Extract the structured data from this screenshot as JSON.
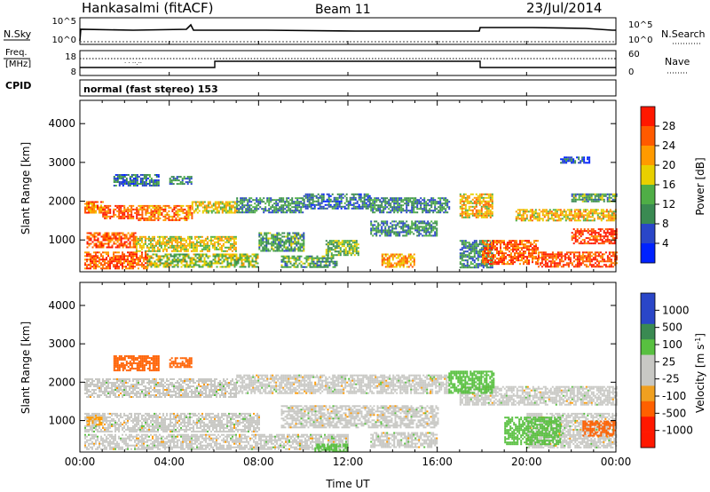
{
  "header": {
    "station": "Hankasalmi (fitACF)",
    "beam": "Beam 11",
    "date": "23/Jul/2014"
  },
  "side_labels": {
    "nsky": "N.Sky",
    "nsearch": "N.Search",
    "freq_line1": "Freq.",
    "freq_line2": "[MHz]",
    "nave": "Nave",
    "cpid": "CPID"
  },
  "strip_ticks": {
    "nsky_top": "10^5",
    "nsky_bottom": "10^0",
    "nsearch_top": "10^5",
    "nsearch_bottom": "10^0",
    "freq_top": "18",
    "freq_bottom": "8",
    "nave_top": "60",
    "nave_bottom": "0"
  },
  "cpid_text": "normal (fast stereo) 153",
  "colors": {
    "power_scale": [
      "#0022ff",
      "#2a46c8",
      "#3a8a52",
      "#4fae46",
      "#e8d000",
      "#ff9a00",
      "#ff5a00",
      "#ff1800"
    ],
    "velocity_scale": [
      "#ff1800",
      "#ff6000",
      "#ff9a00",
      "#f0a020",
      "#c8c8c4",
      "#c8c8c4",
      "#58c040",
      "#3a8a52",
      "#2a46c8",
      "#2a46c8"
    ]
  },
  "chart_data": [
    {
      "type": "heatmap",
      "name": "power",
      "ylabel": "Slant Range [km]",
      "xlabel": "",
      "y_ticks": [
        "4000",
        "3000",
        "2000",
        "1000"
      ],
      "y_tick_values": [
        4000,
        3000,
        2000,
        1000
      ],
      "x_ticks": [
        "00:00",
        "04:00",
        "08:00",
        "12:00",
        "16:00",
        "20:00",
        "00:00"
      ],
      "x_tick_values": [
        0,
        4,
        8,
        12,
        16,
        20,
        24
      ],
      "xlim": [
        0,
        24
      ],
      "ylim": [
        180,
        4600
      ],
      "colorbar": {
        "label": "Power [dB]",
        "ticks": [
          "28",
          "24",
          "20",
          "16",
          "12",
          "8",
          "4"
        ],
        "tick_values": [
          28,
          24,
          20,
          16,
          12,
          8,
          4
        ],
        "range": [
          0,
          32
        ]
      },
      "echo_bands": [
        {
          "t": [
            0.2,
            1.0
          ],
          "r": [
            1700,
            2000
          ],
          "value": 24
        },
        {
          "t": [
            1.0,
            2.6
          ],
          "r": [
            1550,
            1900
          ],
          "value": 26
        },
        {
          "t": [
            2.6,
            5.0
          ],
          "r": [
            1500,
            1900
          ],
          "value": 24
        },
        {
          "t": [
            5.0,
            7.0
          ],
          "r": [
            1700,
            2000
          ],
          "value": 18
        },
        {
          "t": [
            7.0,
            10.0
          ],
          "r": [
            1700,
            2100
          ],
          "value": 10
        },
        {
          "t": [
            10.0,
            13.0
          ],
          "r": [
            1800,
            2200
          ],
          "value": 8
        },
        {
          "t": [
            13.0,
            16.5
          ],
          "r": [
            1700,
            2100
          ],
          "value": 10
        },
        {
          "t": [
            17.0,
            18.5
          ],
          "r": [
            1600,
            2200
          ],
          "value": 20
        },
        {
          "t": [
            19.5,
            24.0
          ],
          "r": [
            1500,
            1800
          ],
          "value": 20
        },
        {
          "t": [
            22.0,
            24.0
          ],
          "r": [
            2000,
            2200
          ],
          "value": 12
        },
        {
          "t": [
            0.3,
            2.5
          ],
          "r": [
            800,
            1200
          ],
          "value": 26
        },
        {
          "t": [
            2.5,
            7.0
          ],
          "r": [
            700,
            1100
          ],
          "value": 18
        },
        {
          "t": [
            8.0,
            10.0
          ],
          "r": [
            700,
            1200
          ],
          "value": 12
        },
        {
          "t": [
            11.0,
            12.5
          ],
          "r": [
            600,
            1000
          ],
          "value": 14
        },
        {
          "t": [
            13.0,
            16.0
          ],
          "r": [
            1100,
            1500
          ],
          "value": 10
        },
        {
          "t": [
            0.2,
            3.0
          ],
          "r": [
            250,
            700
          ],
          "value": 26
        },
        {
          "t": [
            3.0,
            8.0
          ],
          "r": [
            300,
            650
          ],
          "value": 16
        },
        {
          "t": [
            9.0,
            11.5
          ],
          "r": [
            300,
            600
          ],
          "value": 12
        },
        {
          "t": [
            13.5,
            15.0
          ],
          "r": [
            300,
            650
          ],
          "value": 22
        },
        {
          "t": [
            17.0,
            18.5
          ],
          "r": [
            300,
            1000
          ],
          "value": 10
        },
        {
          "t": [
            18.0,
            20.5
          ],
          "r": [
            400,
            1000
          ],
          "value": 26
        },
        {
          "t": [
            20.5,
            24.0
          ],
          "r": [
            300,
            700
          ],
          "value": 28
        },
        {
          "t": [
            22.0,
            24.0
          ],
          "r": [
            900,
            1300
          ],
          "value": 29
        },
        {
          "t": [
            1.5,
            3.5
          ],
          "r": [
            2400,
            2700
          ],
          "value": 8
        },
        {
          "t": [
            4.0,
            5.0
          ],
          "r": [
            2450,
            2650
          ],
          "value": 10
        },
        {
          "t": [
            21.5,
            22.8
          ],
          "r": [
            3000,
            3150
          ],
          "value": 6
        }
      ]
    },
    {
      "type": "heatmap",
      "name": "velocity",
      "ylabel": "Slant Range [km]",
      "xlabel": "Time UT",
      "y_ticks": [
        "4000",
        "3000",
        "2000",
        "1000"
      ],
      "y_tick_values": [
        4000,
        3000,
        2000,
        1000
      ],
      "x_ticks": [
        "00:00",
        "04:00",
        "08:00",
        "12:00",
        "16:00",
        "20:00",
        "00:00"
      ],
      "x_tick_values": [
        0,
        4,
        8,
        12,
        16,
        20,
        24
      ],
      "xlim": [
        0,
        24
      ],
      "ylim": [
        180,
        4600
      ],
      "colorbar": {
        "label": "Velocity [m s^-1]",
        "ticks": [
          "1000",
          "500",
          "100",
          "25",
          "-25",
          "-100",
          "-500",
          "-1000"
        ],
        "tick_values": [
          1000,
          500,
          100,
          25,
          -25,
          -100,
          -500,
          -1000
        ]
      },
      "echo_bands": [
        {
          "t": [
            0.2,
            7.0
          ],
          "r": [
            1600,
            2100
          ],
          "value": 0
        },
        {
          "t": [
            7.0,
            16.5
          ],
          "r": [
            1700,
            2200
          ],
          "value": 0
        },
        {
          "t": [
            0.2,
            8.0
          ],
          "r": [
            700,
            1200
          ],
          "value": 0
        },
        {
          "t": [
            9.0,
            16.0
          ],
          "r": [
            800,
            1400
          ],
          "value": 0
        },
        {
          "t": [
            0.2,
            12.0
          ],
          "r": [
            250,
            650
          ],
          "value": 0
        },
        {
          "t": [
            13.0,
            16.0
          ],
          "r": [
            300,
            700
          ],
          "value": 0
        },
        {
          "t": [
            17.0,
            24.0
          ],
          "r": [
            1400,
            1900
          ],
          "value": 0
        },
        {
          "t": [
            20.0,
            24.0
          ],
          "r": [
            300,
            1200
          ],
          "value": 0
        },
        {
          "t": [
            1.5,
            3.5
          ],
          "r": [
            2300,
            2700
          ],
          "value": -150
        },
        {
          "t": [
            4.0,
            5.0
          ],
          "r": [
            2400,
            2650
          ],
          "value": -150
        },
        {
          "t": [
            16.5,
            18.5
          ],
          "r": [
            1700,
            2300
          ],
          "value": 80
        },
        {
          "t": [
            19.0,
            21.5
          ],
          "r": [
            400,
            1100
          ],
          "value": 80
        },
        {
          "t": [
            10.5,
            12.0
          ],
          "r": [
            200,
            400
          ],
          "value": 80
        },
        {
          "t": [
            22.5,
            24.0
          ],
          "r": [
            600,
            1000
          ],
          "value": -150
        },
        {
          "t": [
            0.3,
            1.0
          ],
          "r": [
            900,
            1100
          ],
          "value": -60
        }
      ]
    }
  ]
}
